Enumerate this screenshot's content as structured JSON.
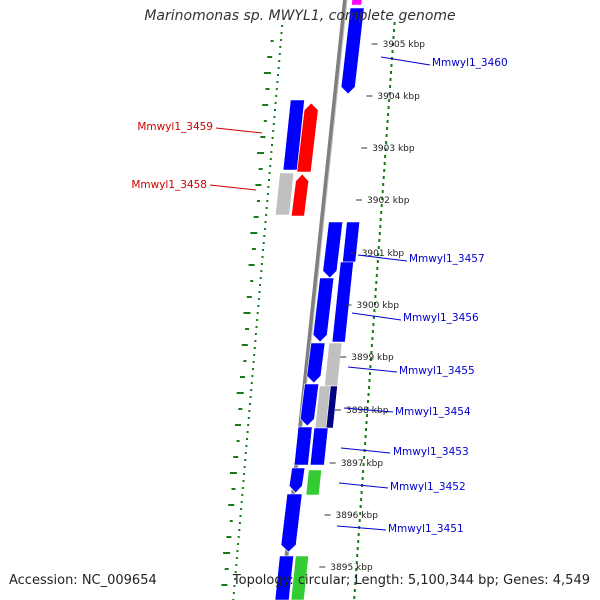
{
  "title": "Marinomonas sp. MWYL1, complete genome",
  "accession": "Accession: NC_009654",
  "topology": "Topology: circular; Length: 5,100,344 bp; Genes: 4,549",
  "colors": {
    "forward_cds": "#0000ff",
    "reverse_cds": "#ff0000",
    "pseudo": "#c0c0c0",
    "rna": "#33cc33",
    "dark_cds": "#000080",
    "magenta": "#ff00ff",
    "backbone": "#808080",
    "gc_marks": "#1a7a1a",
    "forward_label": "#0000cc",
    "reverse_label": "#cc0000"
  },
  "kbp_ticks": [
    {
      "label": "3905 kbp"
    },
    {
      "label": "3904 kbp"
    },
    {
      "label": "3903 kbp"
    },
    {
      "label": "3902 kbp"
    },
    {
      "label": "3901 kbp"
    },
    {
      "label": "3900 kbp"
    },
    {
      "label": "3899 kbp"
    },
    {
      "label": "3898 kbp"
    },
    {
      "label": "3897 kbp"
    },
    {
      "label": "3896 kbp"
    },
    {
      "label": "3895 kbp"
    }
  ],
  "gene_labels": [
    {
      "name": "Mmwyl1_3460",
      "strand": "forward"
    },
    {
      "name": "Mmwyl1_3459",
      "strand": "reverse"
    },
    {
      "name": "Mmwyl1_3458",
      "strand": "reverse"
    },
    {
      "name": "Mmwyl1_3457",
      "strand": "forward"
    },
    {
      "name": "Mmwyl1_3456",
      "strand": "forward"
    },
    {
      "name": "Mmwyl1_3455",
      "strand": "forward"
    },
    {
      "name": "Mmwyl1_3454",
      "strand": "forward"
    },
    {
      "name": "Mmwyl1_3453",
      "strand": "forward"
    },
    {
      "name": "Mmwyl1_3452",
      "strand": "forward"
    },
    {
      "name": "Mmwyl1_3451",
      "strand": "forward"
    }
  ]
}
